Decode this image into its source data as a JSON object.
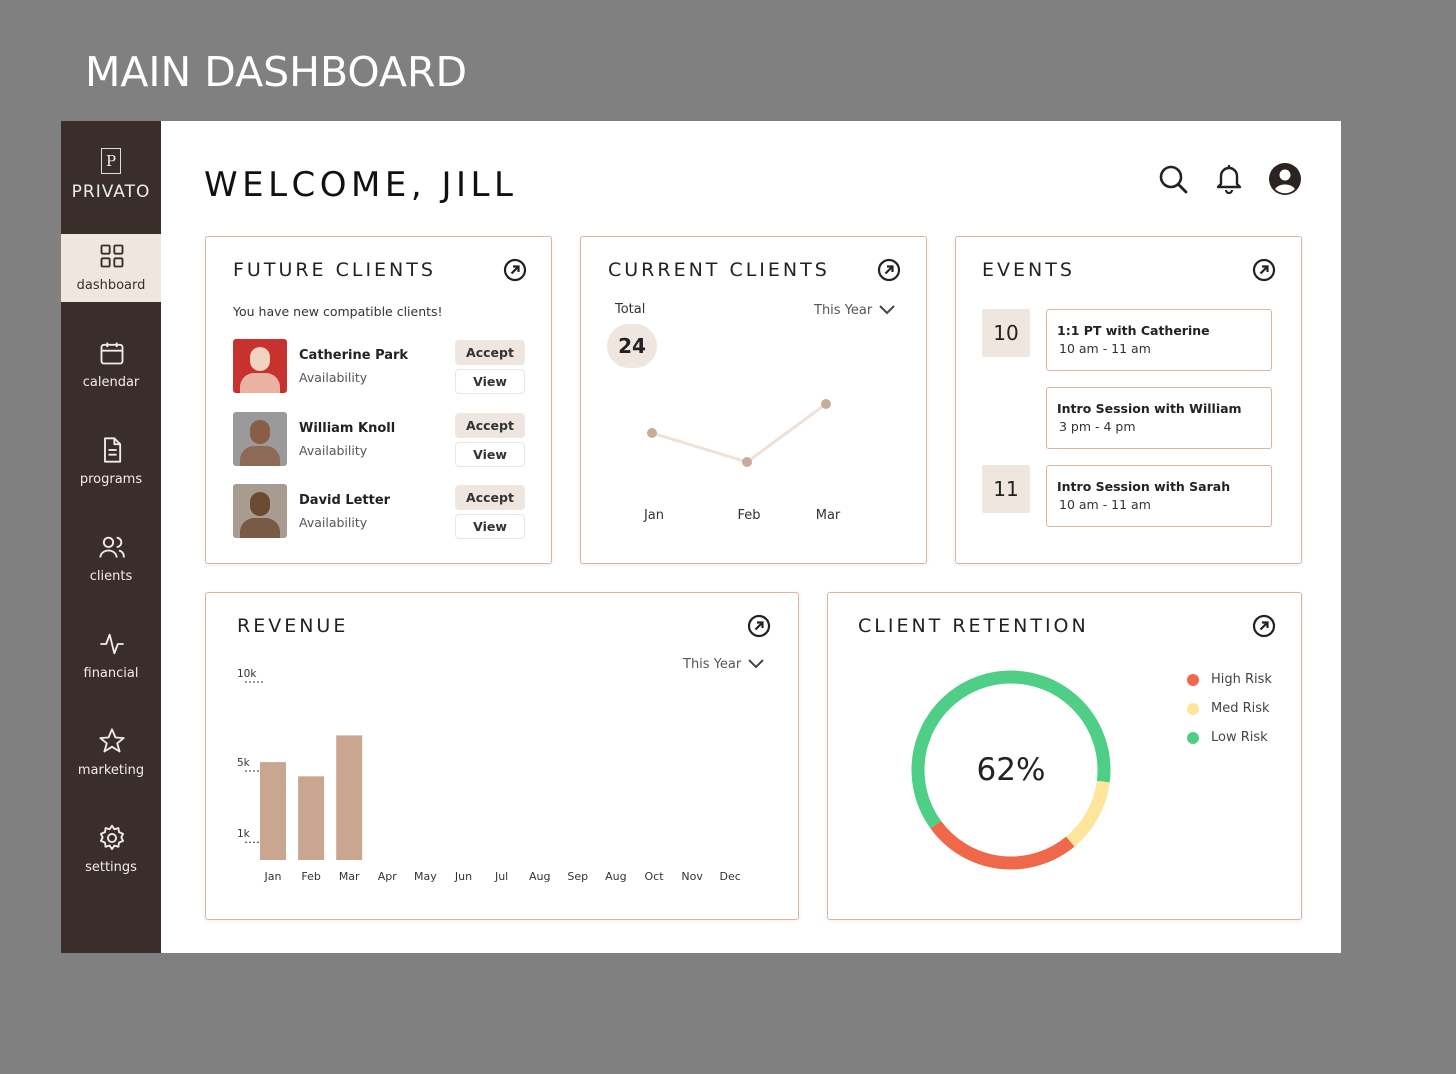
{
  "page_title": "MAIN DASHBOARD",
  "sidebar": {
    "logo_letter": "P",
    "brand": "PRIVATO",
    "nav": [
      "dashboard",
      "calendar",
      "programs",
      "clients",
      "financial",
      "marketing",
      "settings"
    ]
  },
  "header": {
    "greeting": "WELCOME, JILL"
  },
  "future_clients": {
    "title": "FUTURE CLIENTS",
    "message": "You have new compatible clients!",
    "clients": [
      {
        "name": "Catherine Park",
        "detail": "Availability",
        "accept": "Accept",
        "view": "View"
      },
      {
        "name": "William Knoll",
        "detail": "Availability",
        "accept": "Accept",
        "view": "View"
      },
      {
        "name": "David Letter",
        "detail": "Availability",
        "accept": "Accept",
        "view": "View"
      }
    ]
  },
  "current_clients": {
    "title": "CURRENT CLIENTS",
    "total_label": "Total",
    "total": 24,
    "period": "This Year",
    "chart_data": {
      "type": "line",
      "categories": [
        "Jan",
        "Feb",
        "Mar"
      ],
      "values": [
        8,
        6,
        10
      ],
      "color": "#c9ab99",
      "ylim": [
        4,
        12
      ]
    }
  },
  "events": {
    "title": "EVENTS",
    "days": [
      {
        "day": 10,
        "items": [
          {
            "title": "1:1 PT with Catherine",
            "time": "10 am - 11 am"
          },
          {
            "title": "Intro Session with William",
            "time": "3 pm - 4 pm"
          }
        ]
      },
      {
        "day": 11,
        "items": [
          {
            "title": "Intro Session with Sarah",
            "time": "10 am - 11 am"
          }
        ]
      }
    ]
  },
  "revenue": {
    "title": "REVENUE",
    "period": "This Year",
    "chart_data": {
      "type": "bar",
      "categories": [
        "Jan",
        "Feb",
        "Mar",
        "Apr",
        "May",
        "Jun",
        "Jul",
        "Aug",
        "Sep",
        "Aug",
        "Oct",
        "Nov",
        "Dec"
      ],
      "values": [
        5500,
        4700,
        7000,
        null,
        null,
        null,
        null,
        null,
        null,
        null,
        null,
        null,
        null
      ],
      "color": "#c8a690",
      "ylim": [
        0,
        10000
      ],
      "yticks": [
        {
          "value": 10000,
          "label": "10k"
        },
        {
          "value": 5000,
          "label": "5k"
        },
        {
          "value": 1000,
          "label": "1k"
        }
      ]
    }
  },
  "client_retention": {
    "title": "CLIENT RETENTION",
    "center_label": "62%",
    "chart_data": {
      "type": "donut",
      "categories": [
        "High Risk",
        "Med Risk",
        "Low Risk"
      ],
      "values": [
        26,
        12,
        62
      ],
      "colors": [
        "#ee6849",
        "#fde59a",
        "#4fcf85"
      ]
    }
  }
}
